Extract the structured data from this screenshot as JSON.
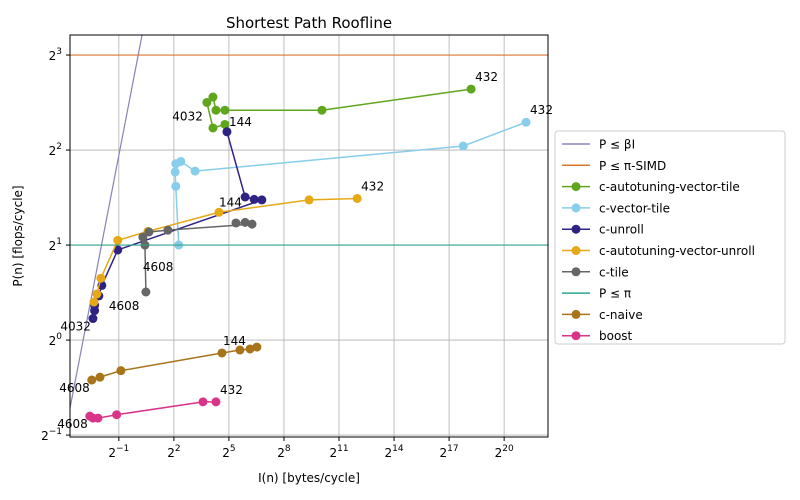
{
  "chart_data": {
    "type": "line",
    "title": "Shortest Path Roofline",
    "x_label": "I(n) [bytes/cycle]",
    "y_label": "P(n) [flops/cycle]",
    "log_base": 2,
    "grid": true,
    "legend_position": "right",
    "xlim": [
      0.079,
      5500000
    ],
    "ylim": [
      0.493,
      9.26
    ],
    "xticks": [
      {
        "value": 0.5,
        "label": "2^−1"
      },
      {
        "value": 4,
        "label": "2^2"
      },
      {
        "value": 32,
        "label": "2^5"
      },
      {
        "value": 256,
        "label": "2^8"
      },
      {
        "value": 2048,
        "label": "2^11"
      },
      {
        "value": 16384,
        "label": "2^14"
      },
      {
        "value": 131072,
        "label": "2^17"
      },
      {
        "value": 1048576,
        "label": "2^20"
      }
    ],
    "yticks": [
      {
        "value": 0.5,
        "label": "2^−1"
      },
      {
        "value": 1,
        "label": "2^0"
      },
      {
        "value": 2,
        "label": "2^1"
      },
      {
        "value": 4,
        "label": "2^2"
      },
      {
        "value": 8,
        "label": "2^3"
      }
    ],
    "series": [
      {
        "name": "P ≤ βI",
        "kind": "bandwidth",
        "color": "#8a80b8",
        "value": 7.7
      },
      {
        "name": "P ≤ π-SIMD",
        "kind": "ceiling",
        "color": "#d9742c",
        "value": 8
      },
      {
        "name": "c-autotuning-vector-tile",
        "kind": "measured",
        "color": "#5fa61c",
        "x": [
          301000,
          1075,
          27.5,
          19.6,
          17.5,
          13.9,
          17.5,
          27.5
        ],
        "values": [
          6.24,
          5.35,
          5.35,
          5.35,
          5.89,
          5.66,
          4.7,
          4.82
        ],
        "point_labels": [
          "432",
          null,
          null,
          null,
          null,
          "4032",
          null,
          null
        ]
      },
      {
        "name": "c-vector-tile",
        "kind": "measured",
        "color": "#87ceeb",
        "x": [
          2400000,
          224000,
          8.9,
          5.2,
          4.3,
          4.2,
          4.3,
          4.8
        ],
        "values": [
          4.9,
          4.12,
          3.43,
          3.68,
          3.62,
          3.41,
          3.07,
          2.0
        ],
        "point_labels": [
          "432",
          null,
          null,
          null,
          null,
          null,
          null,
          null
        ]
      },
      {
        "name": "c-unroll",
        "kind": "measured",
        "color": "#2e2383",
        "x": [
          0.188,
          0.2,
          0.2,
          0.235,
          0.263,
          0.48,
          111,
          83,
          59,
          29.7
        ],
        "values": [
          1.17,
          1.24,
          1.29,
          1.38,
          1.49,
          1.93,
          2.78,
          2.79,
          2.84,
          4.57
        ],
        "point_labels": [
          "4032",
          null,
          null,
          "4608",
          null,
          null,
          null,
          null,
          null,
          "144"
        ]
      },
      {
        "name": "c-autotuning-vector-unroll",
        "kind": "measured",
        "color": "#e6a817",
        "x": [
          0.195,
          0.218,
          0.254,
          0.48,
          1.5,
          22,
          661,
          4070
        ],
        "values": [
          1.32,
          1.4,
          1.57,
          2.07,
          2.21,
          2.54,
          2.78,
          2.81
        ],
        "point_labels": [
          null,
          null,
          null,
          null,
          null,
          "144",
          null,
          "432"
        ]
      },
      {
        "name": "c-tile",
        "kind": "measured",
        "color": "#666666",
        "x": [
          1.39,
          1.34,
          1.24,
          1.56,
          3.19,
          76.6,
          59,
          41.7
        ],
        "values": [
          1.42,
          2.0,
          2.12,
          2.2,
          2.23,
          2.33,
          2.36,
          2.35
        ],
        "point_labels": [
          "4608",
          null,
          null,
          null,
          null,
          null,
          null,
          null
        ]
      },
      {
        "name": "P ≤ π",
        "kind": "ceiling",
        "color": "#2ca58d",
        "value": 2
      },
      {
        "name": "c-naive",
        "kind": "measured",
        "color": "#a8741a",
        "x": [
          0.18,
          0.245,
          0.54,
          24.6,
          48.5,
          71,
          92
        ],
        "values": [
          0.747,
          0.763,
          0.8,
          0.91,
          0.93,
          0.937,
          0.95
        ],
        "point_labels": [
          "4608",
          null,
          null,
          "144",
          null,
          null,
          null
        ]
      },
      {
        "name": "boost",
        "kind": "measured",
        "color": "#d9348a",
        "x": [
          0.167,
          0.188,
          0.227,
          0.46,
          12,
          19.6
        ],
        "values": [
          0.574,
          0.566,
          0.566,
          0.58,
          0.637,
          0.637
        ],
        "point_labels": [
          "4608",
          null,
          null,
          null,
          null,
          "432"
        ]
      }
    ]
  }
}
